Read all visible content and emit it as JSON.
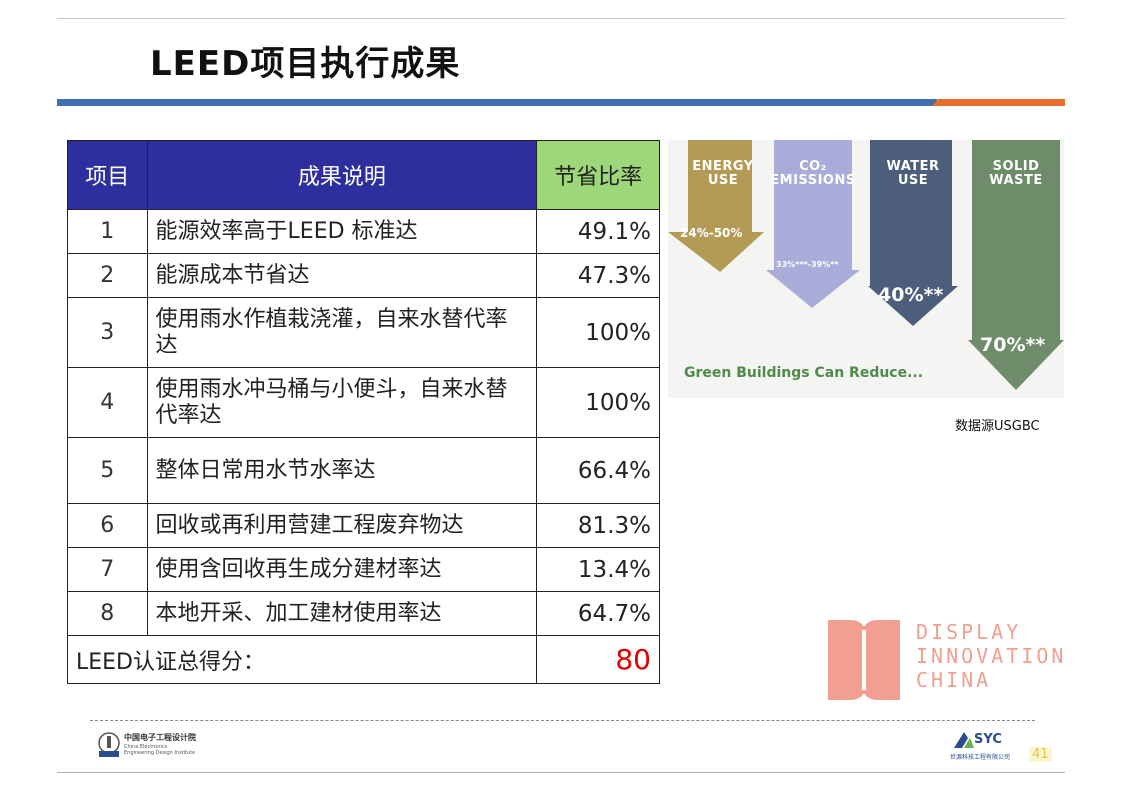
{
  "title": "LEED项目执行成果",
  "table": {
    "headers": [
      "项目",
      "成果说明",
      "节省比率"
    ],
    "rows": [
      {
        "no": "1",
        "desc": "能源效率高于LEED 标准达",
        "pct": "49.1%"
      },
      {
        "no": "2",
        "desc": "能源成本节省达",
        "pct": "47.3%"
      },
      {
        "no": "3",
        "desc": "使用雨水作植栽浇灌，自来水替代率达",
        "pct": "100%"
      },
      {
        "no": "4",
        "desc": "使用雨水冲马桶与小便斗，自来水替代率达",
        "pct": "100%"
      },
      {
        "no": "5",
        "desc": "整体日常用水节水率达",
        "pct": "66.4%"
      },
      {
        "no": "6",
        "desc": "回收或再利用营建工程废弃物达",
        "pct": "81.3%"
      },
      {
        "no": "7",
        "desc": "使用含回收再生成分建材率达",
        "pct": "13.4%"
      },
      {
        "no": "8",
        "desc": "本地开采、加工建材使用率达",
        "pct": "64.7%"
      }
    ],
    "score_label": "LEED认证总得分：",
    "score_value": "80"
  },
  "infographic": {
    "arrows": [
      {
        "label1": "ENERGY",
        "label2": "USE",
        "value": "24%-50%",
        "color": "#b39a55"
      },
      {
        "label1": "CO₂",
        "label2": "EMISSIONS",
        "value": "33%***-39%**",
        "color": "#a9acd8"
      },
      {
        "label1": "WATER",
        "label2": "USE",
        "value": "40%**",
        "color": "#4d5d7c"
      },
      {
        "label1": "SOLID",
        "label2": "WASTE",
        "value": "70%**",
        "color": "#6e8c6a"
      }
    ],
    "caption": "Green Buildings Can Reduce..."
  },
  "source": "数据源USGBC",
  "brand": {
    "line1": "DISPLAY",
    "line2": "INNOVATION",
    "line3": "CHINA",
    "color": "#f0a090"
  },
  "footer": {
    "left_cn": "中国电子工程设计院",
    "left_en1": "China Electronics",
    "left_en2": "Engineering Design Institute",
    "right_logo": "SYC",
    "right_cn": "世源科技工程有限公司",
    "page": "41"
  }
}
